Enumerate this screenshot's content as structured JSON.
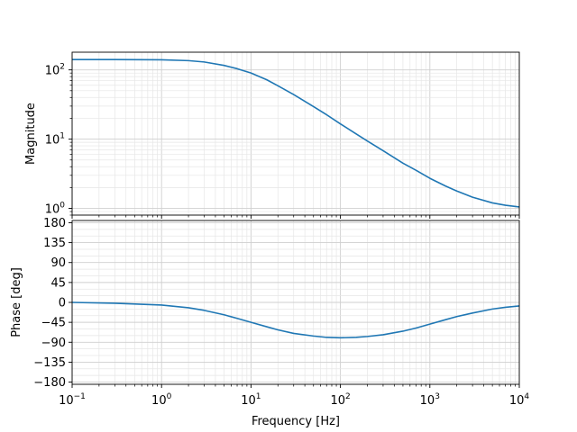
{
  "chart_data": [
    {
      "type": "line",
      "title": "",
      "xlabel": "",
      "ylabel": "Magnitude",
      "xscale": "log",
      "yscale": "log",
      "xlim": [
        0.1,
        10000
      ],
      "ylim": [
        0.8,
        180
      ],
      "grid": "on (major and minor)",
      "show_x_tick_labels": false,
      "y_ticks": [
        {
          "value": 1,
          "base": "10",
          "exp": "0"
        },
        {
          "value": 10,
          "base": "10",
          "exp": "1"
        },
        {
          "value": 100,
          "base": "10",
          "exp": "2"
        }
      ],
      "series": [
        {
          "color": "#1f77b4",
          "x": [
            0.1,
            0.3,
            1,
            2,
            3,
            5,
            7,
            10,
            15,
            20,
            30,
            50,
            70,
            100,
            150,
            200,
            300,
            500,
            700,
            1000,
            1500,
            2000,
            3000,
            5000,
            7000,
            10000
          ],
          "y": [
            141,
            141,
            140,
            136,
            130,
            116,
            104,
            90,
            72,
            59,
            44,
            29.5,
            22.5,
            16.6,
            11.9,
            9.4,
            6.8,
            4.5,
            3.55,
            2.72,
            2.1,
            1.78,
            1.45,
            1.2,
            1.11,
            1.05
          ]
        }
      ]
    },
    {
      "type": "line",
      "title": "",
      "xlabel": "Frequency [Hz]",
      "ylabel": "Phase [deg]",
      "xscale": "log",
      "yscale": "linear",
      "xlim": [
        0.1,
        10000
      ],
      "ylim": [
        -185,
        185
      ],
      "grid": "on (major and minor)",
      "x_ticks": [
        {
          "value": 0.1,
          "base": "10",
          "exp": "−1"
        },
        {
          "value": 1,
          "base": "10",
          "exp": "0"
        },
        {
          "value": 10,
          "base": "10",
          "exp": "1"
        },
        {
          "value": 100,
          "base": "10",
          "exp": "2"
        },
        {
          "value": 1000,
          "base": "10",
          "exp": "3"
        },
        {
          "value": 10000,
          "base": "10",
          "exp": "4"
        }
      ],
      "y_ticks": [
        {
          "value": 180,
          "label": "180"
        },
        {
          "value": 135,
          "label": "135"
        },
        {
          "value": 90,
          "label": "90"
        },
        {
          "value": 45,
          "label": "45"
        },
        {
          "value": 0,
          "label": "0"
        },
        {
          "value": -45,
          "label": "−45"
        },
        {
          "value": -90,
          "label": "−90"
        },
        {
          "value": -135,
          "label": "−135"
        },
        {
          "value": -180,
          "label": "−180"
        }
      ],
      "series": [
        {
          "color": "#1f77b4",
          "x": [
            0.1,
            0.3,
            1,
            2,
            3,
            5,
            7,
            10,
            15,
            20,
            30,
            50,
            70,
            100,
            150,
            200,
            300,
            500,
            700,
            1000,
            1500,
            2000,
            3000,
            5000,
            7000,
            10000
          ],
          "y": [
            0,
            -2,
            -6,
            -12,
            -18,
            -28,
            -36,
            -45,
            -55,
            -62,
            -70,
            -76,
            -79,
            -80,
            -79,
            -77,
            -73,
            -65,
            -58,
            -49,
            -39,
            -32,
            -24,
            -15,
            -11,
            -8
          ]
        }
      ]
    }
  ]
}
